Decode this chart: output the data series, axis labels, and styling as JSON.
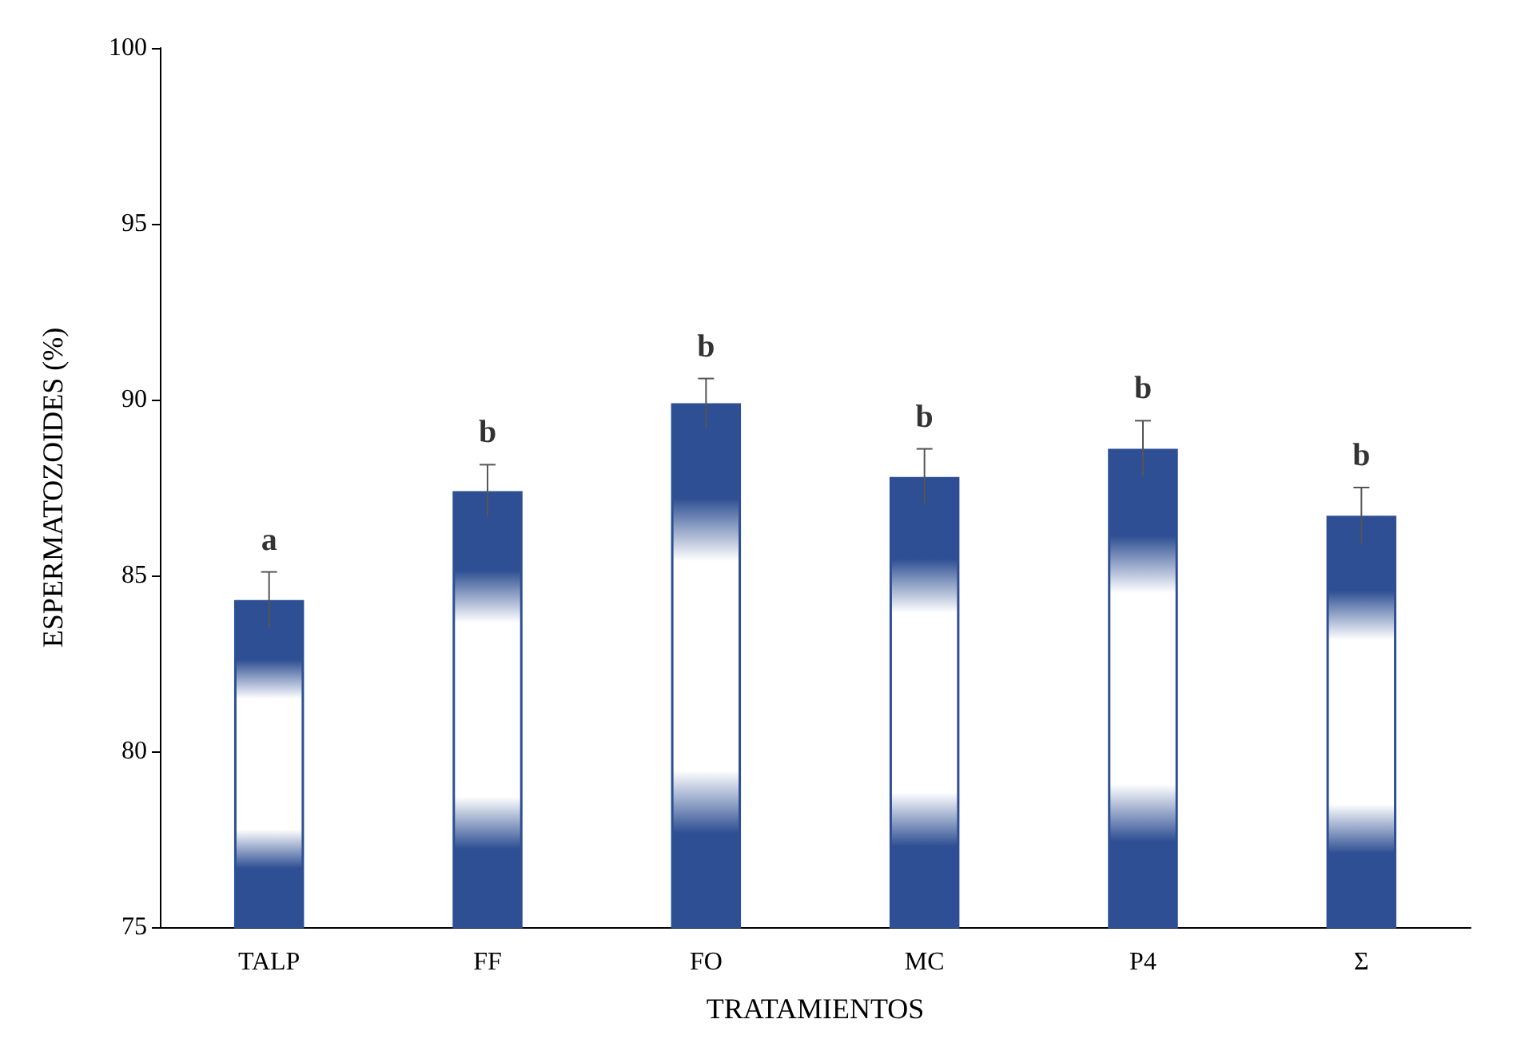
{
  "chart_data": {
    "type": "bar",
    "xlabel": "TRATAMIENTOS",
    "ylabel": "ESPERMATOZOIDES (%)",
    "categories": [
      "TALP",
      "FF",
      "FO",
      "MC",
      "P4",
      "Σ"
    ],
    "values": [
      84.3,
      87.4,
      89.9,
      87.8,
      88.6,
      86.7
    ],
    "errors": [
      0.8,
      0.75,
      0.7,
      0.8,
      0.8,
      0.8
    ],
    "color": "#2e4f93",
    "ylim": [
      75,
      100
    ],
    "yticks": [
      75,
      80,
      85,
      90,
      95,
      100
    ],
    "grid": false,
    "annotations": [
      {
        "text": "a",
        "x": "TALP",
        "y": 84.3
      },
      {
        "text": "b",
        "x": "FF",
        "y": 87.4
      },
      {
        "text": "b",
        "x": "FO",
        "y": 89.9
      },
      {
        "text": "b",
        "x": "MC",
        "y": 87.8
      },
      {
        "text": "b",
        "x": "P4",
        "y": 88.6
      },
      {
        "text": "b",
        "x": "Σ",
        "y": 86.7
      }
    ]
  }
}
